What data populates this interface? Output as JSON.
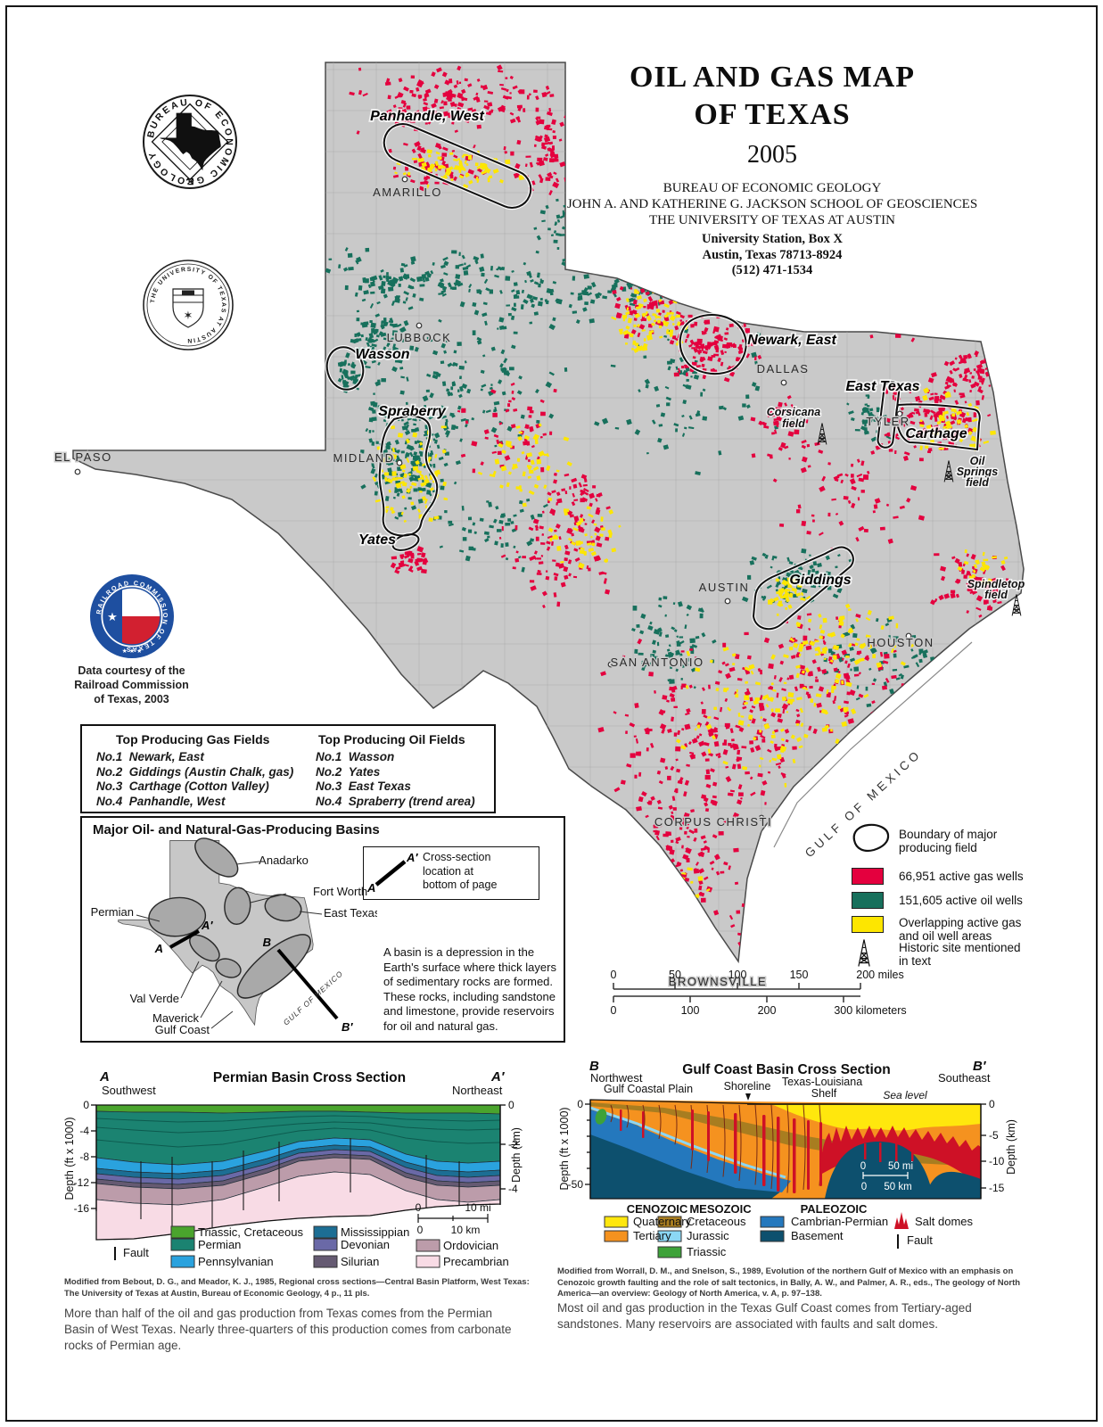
{
  "header": {
    "title1": "OIL AND GAS MAP",
    "title2": "OF TEXAS",
    "year": "2005",
    "org1": "BUREAU OF ECONOMIC GEOLOGY",
    "org2": "JOHN A. AND KATHERINE G. JACKSON SCHOOL OF GEOSCIENCES",
    "org3": "THE UNIVERSITY OF TEXAS AT AUSTIN",
    "addr1": "University Station, Box X",
    "addr2": "Austin, Texas 78713-8924",
    "addr3": "(512) 471-1534"
  },
  "seals": {
    "beg_text": "BUREAU OF ECONOMIC GEOLOGY",
    "ut_text": "THE UNIVERSITY OF TEXAS AT AUSTIN",
    "rrc_text": "RAILROAD COMMISSION OF TEXAS",
    "rrc_caption1": "Data courtesy of the",
    "rrc_caption2": "Railroad Commission",
    "rrc_caption3": "of Texas, 2003"
  },
  "map": {
    "cities": [
      "AMARILLO",
      "LUBBOCK",
      "MIDLAND",
      "EL PASO",
      "DALLAS",
      "TYLER",
      "AUSTIN",
      "SAN ANTONIO",
      "HOUSTON",
      "CORPUS CHRISTI",
      "BROWNSVILLE"
    ],
    "fields": [
      "Panhandle, West",
      "Wasson",
      "Spraberry",
      "Yates",
      "Newark, East",
      "East Texas",
      "Carthage",
      "Giddings"
    ],
    "sites": [
      [
        "Corsicana",
        "field"
      ],
      [
        "Oil",
        "Springs",
        "field"
      ],
      [
        "Spindletop",
        "field"
      ]
    ],
    "gulf_label": "GULF  OF  MEXICO",
    "colors": {
      "land": "#c9c9c9"
    }
  },
  "legend": {
    "boundary1": "Boundary of major",
    "boundary2": "producing field",
    "gas": "66,951 active gas wells",
    "oil": "151,605 active oil wells",
    "overlap1": "Overlapping active gas",
    "overlap2": "and oil well areas",
    "historic1": "Historic site mentioned",
    "historic2": "in text",
    "colors": {
      "gas": "#e4003e",
      "oil": "#17705c",
      "overlap": "#fde600"
    }
  },
  "scalebar": {
    "mi": [
      "0",
      "50",
      "100",
      "150"
    ],
    "mi_end": "200 miles",
    "km": [
      "0",
      "100",
      "200"
    ],
    "km_end": "300 kilometers"
  },
  "tables": {
    "gas": {
      "title": "Top Producing Gas Fields",
      "rows": [
        [
          "No.1",
          "Newark, East"
        ],
        [
          "No.2",
          "Giddings (Austin Chalk, gas)"
        ],
        [
          "No.3",
          "Carthage (Cotton Valley)"
        ],
        [
          "No.4",
          "Panhandle, West"
        ]
      ]
    },
    "oil": {
      "title": "Top Producing Oil Fields",
      "rows": [
        [
          "No.1",
          "Wasson"
        ],
        [
          "No.2",
          "Yates"
        ],
        [
          "No.3",
          "East Texas"
        ],
        [
          "No.4",
          "Spraberry (trend area)"
        ]
      ]
    }
  },
  "basins": {
    "title": "Major Oil- and Natural-Gas-Producing Basins",
    "names": [
      "Anadarko",
      "Fort Worth",
      "East Texas",
      "Permian",
      "Val Verde",
      "Maverick",
      "Gulf Coast"
    ],
    "a": "A",
    "a2": "A′",
    "b": "B",
    "b2": "B′",
    "note1": "Cross-section",
    "note2": "location at",
    "note3": "bottom of page",
    "gulf_label": "GULF OF MEXICO",
    "desc": "A basin is a depression in the Earth's surface where thick layers of sedimentary rocks are formed. These rocks, including sandstone and limestone, provide reservoirs for oil and natural gas."
  },
  "permian": {
    "title": "Permian Basin Cross Section",
    "a": "A",
    "a2": "A′",
    "dir_l": "Southwest",
    "dir_r": "Northeast",
    "yl_label": "Depth (ft x 1000)",
    "yl": [
      "0",
      "-4",
      "-8",
      "-12",
      "-16"
    ],
    "yr_label": "Depth (km)",
    "yr": [
      "0",
      "-2",
      "-4"
    ],
    "scale0": "0",
    "scale_mi": "10 mi",
    "scale_km": "10 km",
    "fault": "Fault",
    "legend": [
      {
        "label": "Triassic, Cretaceous",
        "color": "#4aa42d"
      },
      {
        "label": "Permian",
        "color": "#1b8371"
      },
      {
        "label": "Pennsylvanian",
        "color": "#2aa2de"
      },
      {
        "label": "Mississippian",
        "color": "#1c6e94"
      },
      {
        "label": "Devonian",
        "color": "#6a69a7"
      },
      {
        "label": "Silurian",
        "color": "#655a72"
      },
      {
        "label": "Ordovician",
        "color": "#bc9caa"
      },
      {
        "label": "Precambrian",
        "color": "#f8dbe5"
      }
    ],
    "credit": "Modified from Bebout, D. G., and Meador, K. J., 1985, Regional cross sections—Central Basin Platform, West Texas: The University of Texas at Austin, Bureau of Economic Geology, 4 p., 11 pls.",
    "caption": "More than half of the oil and gas production from Texas comes from the Permian Basin of West Texas. Nearly three-quarters of this production comes from carbonate rocks of Permian age."
  },
  "gulf": {
    "title": "Gulf Coast Basin Cross Section",
    "b": "B",
    "b2": "B′",
    "dir_l": "Northwest",
    "dir_r": "Southeast",
    "lbl_plain": "Gulf Coastal Plain",
    "lbl_shore": "Shoreline",
    "lbl_shelf1": "Texas-Louisiana",
    "lbl_shelf2": "Shelf",
    "lbl_sea": "Sea level",
    "yl_label": "Depth (ft x 1000)",
    "yl": [
      "0",
      "-50"
    ],
    "yr_label": "Depth (km)",
    "yr": [
      "0",
      "-5",
      "-10",
      "-15"
    ],
    "scale0": "0",
    "scale_mi": "50 mi",
    "scale_km": "50 km",
    "groups": [
      {
        "era": "CENOZOIC",
        "items": [
          {
            "label": "Quaternary",
            "color": "#ffe70d"
          },
          {
            "label": "Tertiary",
            "color": "#f5921f"
          }
        ]
      },
      {
        "era": "MESOZOIC",
        "items": [
          {
            "label": "Cretaceous",
            "color": "#a87d20"
          },
          {
            "label": "Jurassic",
            "color": "#8bd7f5"
          },
          {
            "label": "Triassic",
            "color": "#3da239"
          }
        ]
      },
      {
        "era": "PALEOZOIC",
        "items": [
          {
            "label": "Cambrian-Permian",
            "color": "#2478bd"
          },
          {
            "label": "Basement",
            "color": "#0d506e"
          }
        ]
      }
    ],
    "salt": "Salt domes",
    "salt_color": "#ce1126",
    "fault": "Fault",
    "credit": "Modified from Worrall, D. M., and Snelson, S., 1989, Evolution of the northern Gulf of Mexico with an emphasis on Cenozoic growth faulting and the role of salt tectonics, in Bally, A. W., and Palmer, A. R., eds., The geology of North America—an overview: Geology of North America, v. A, p. 97–138.",
    "caption": "Most oil and gas production in the Texas Gulf Coast comes from Tertiary-aged sandstones. Many reservoirs are associated with faults and salt domes."
  }
}
